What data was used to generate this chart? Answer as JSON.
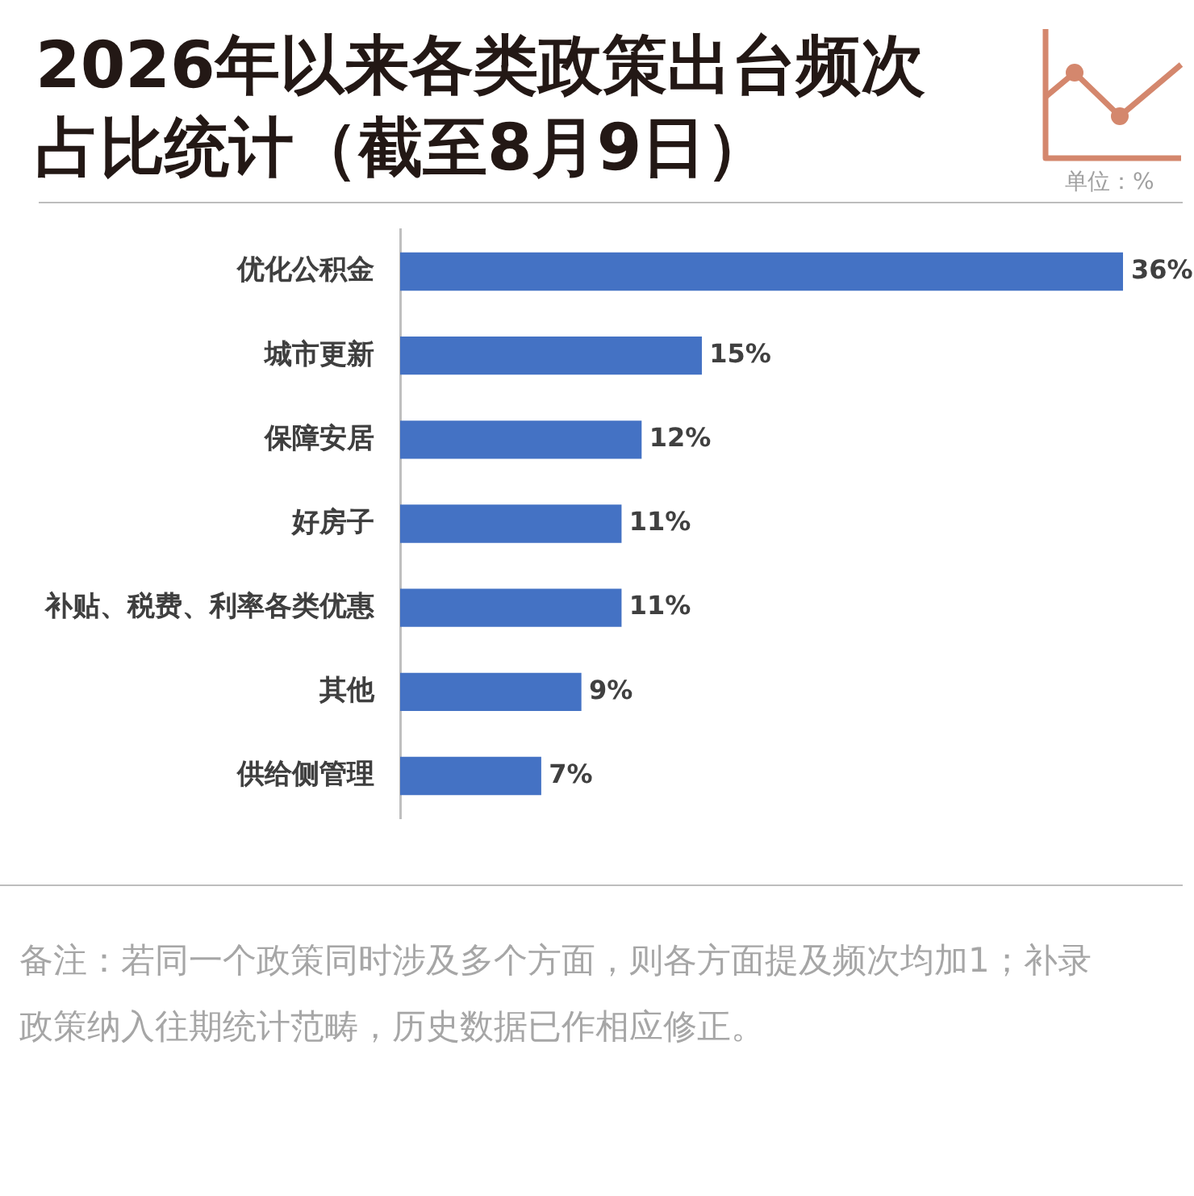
{
  "chart_data": {
    "type": "bar",
    "orientation": "horizontal",
    "title": "2026年以来各类政策出台频次占比统计（截至8月9日）",
    "categories": [
      "优化公积金",
      "城市更新",
      "保障安居",
      "好房子",
      "补贴、税费、利率各类优惠",
      "其他",
      "供给侧管理"
    ],
    "values": [
      36,
      15,
      12,
      11,
      11,
      9,
      7
    ],
    "value_labels": [
      "36%",
      "15%",
      "12%",
      "11%",
      "11%",
      "9%",
      "7%"
    ],
    "color": "#4472c4",
    "annotations": [
      "单位：%",
      "备注：若同一个政策同时涉及多个方面，则各方面提及频次均加1；补录政策纳入往期统计范畴，历史数据已作相应修正。"
    ]
  }
}
